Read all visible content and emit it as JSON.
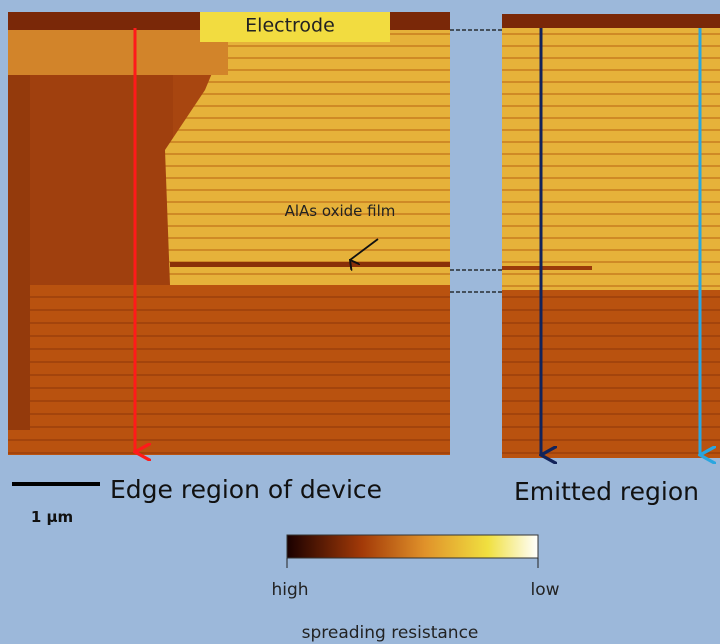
{
  "labels": {
    "electrode": "Electrode",
    "oxide": "AlAs oxide film",
    "edge": "Edge region of device",
    "emitted": "Emitted region",
    "scale": "1 μm"
  },
  "colorbar": {
    "high": "high",
    "low": "low",
    "title": "spreading resistance"
  }
}
